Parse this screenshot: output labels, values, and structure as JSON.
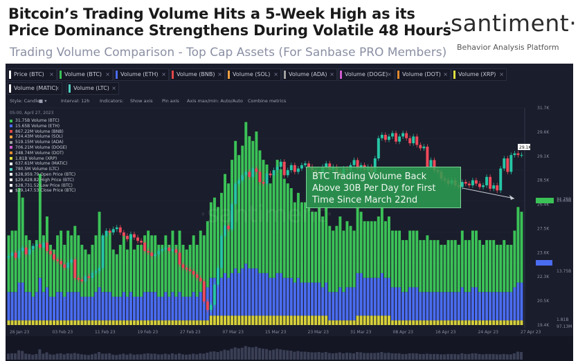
{
  "header": {
    "title": "Bitcoin’s Trading Volume Hits a 5-Week High as its Price Dominance Strengthens During Volatile 48 Hours",
    "subtitle": "Trading Volume Comparison - Top Cap Assets (For Sanbase PRO Members)",
    "brand": "·santiment·",
    "brand_tagline": "Behavior Analysis Platform"
  },
  "tabs": [
    {
      "label": "Price (BTC)",
      "color": "#ffffff"
    },
    {
      "label": "Volume (BTC)",
      "color": "#3bc257"
    },
    {
      "label": "Volume (ETH)",
      "color": "#4a6cf0"
    },
    {
      "label": "Volume (BNB)",
      "color": "#e04848"
    },
    {
      "label": "Volume (SOL)",
      "color": "#f0a040"
    },
    {
      "label": "Volume (ADA)",
      "color": "#a0a0a0"
    },
    {
      "label": "Volume (DOGE)",
      "color": "#d05bd0"
    },
    {
      "label": "Volume (DOT)",
      "color": "#e08a30"
    },
    {
      "label": "Volume (XRP)",
      "color": "#e0e040"
    },
    {
      "label": "Volume (MATIC)",
      "color": "#ffffff"
    },
    {
      "label": "Volume (LTC)",
      "color": "#50d0c0"
    }
  ],
  "toolbar": {
    "style": "Style: Candles",
    "interval": "Interval: 12h",
    "indicators": "Indicators:",
    "show_axis": "Show axis",
    "pin_axis": "Pin axis",
    "axis_max_min": "Axis max/min: Auto/Auto",
    "combine": "Combine metrics"
  },
  "legend": {
    "date": "05:00, April 27, 2023",
    "rows": [
      {
        "text": "31.75B Volume (BTC)",
        "color": "#3bc257"
      },
      {
        "text": "15.65B Volume (ETH)",
        "color": "#4a6cf0"
      },
      {
        "text": "867.22M Volume (BNB)",
        "color": "#e04848"
      },
      {
        "text": "724.43M Volume (SOL)",
        "color": "#f0a040"
      },
      {
        "text": "519.15M Volume (ADA)",
        "color": "#a0a0a0"
      },
      {
        "text": "706.21M Volume (DOGE)",
        "color": "#d05bd0"
      },
      {
        "text": "248.74M Volume (DOT)",
        "color": "#e08a30"
      },
      {
        "text": "1.81B Volume (XRP)",
        "color": "#e0e040"
      },
      {
        "text": "637.61M Volume (MATIC)",
        "color": "#ffffff"
      },
      {
        "text": "780.5M Volume (LTC)",
        "color": "#50d0c0"
      },
      {
        "text": "$28,959.79 Open Price (BTC)",
        "color": "#ffffff"
      },
      {
        "text": "$29,428.82 High Price (BTC)",
        "color": "#ffffff"
      },
      {
        "text": "$28,731.52 Low Price (BTC)",
        "color": "#ffffff"
      },
      {
        "text": "$29,147.53 Close Price (BTC)",
        "color": "#ffffff"
      }
    ]
  },
  "annotation": {
    "line1": "BTC Trading Volume Back",
    "line2": "Above 30B Per Day for First",
    "line3": "Time Since March 22nd"
  },
  "watermark": "·santiment·",
  "chart_data": {
    "type": "bar",
    "x_ticks": [
      "26 Jan 23",
      "03 Feb 23",
      "11 Feb 23",
      "19 Feb 23",
      "27 Feb 23",
      "07 Mar 23",
      "15 Mar 23",
      "23 Mar 23",
      "31 Mar 23",
      "08 Apr 23",
      "16 Apr 23",
      "24 Apr 23",
      "27 Apr 23"
    ],
    "price_axis_ticks": [
      "31.7K",
      "29.6K",
      "29.1K",
      "28.5K",
      "26.4K",
      "27.5K",
      "23.6K",
      "22.3K",
      "20.5K",
      "19.4K"
    ],
    "volume_axis_ticks": [
      "31.75B",
      "15.65B",
      "13.75B",
      "1.81B",
      "97.13M"
    ],
    "price_current_label": "29.1K",
    "series": [
      {
        "name": "Volume (BTC)",
        "color": "#3bc257",
        "values": [
          12,
          13,
          13,
          20,
          18,
          12,
          11,
          10,
          11,
          22,
          12,
          15,
          11,
          10,
          12,
          13,
          11,
          13,
          12,
          14,
          12,
          11,
          10,
          9,
          11,
          12,
          16,
          12,
          12,
          13,
          10,
          9,
          11,
          12,
          10,
          12,
          10,
          11,
          11,
          12,
          13,
          12,
          12,
          11,
          11,
          12,
          11,
          13,
          11,
          13,
          11,
          10,
          11,
          12,
          11,
          13,
          12,
          14,
          16,
          17,
          16,
          18,
          21,
          20,
          24,
          27,
          25,
          26,
          30,
          28,
          27,
          29,
          26,
          24,
          23,
          20,
          22,
          24,
          22,
          21,
          20,
          19,
          17,
          18,
          17,
          17,
          16,
          15,
          15,
          16,
          15,
          16,
          14,
          13,
          14,
          15,
          13,
          14,
          13,
          12,
          14,
          13,
          12,
          12,
          12,
          12,
          13,
          14,
          12,
          13,
          12,
          12,
          12,
          11,
          11,
          12,
          12,
          12,
          11,
          11,
          12,
          11,
          11,
          11,
          10,
          10,
          11,
          11,
          11,
          10,
          12,
          11,
          11,
          12,
          12,
          11,
          10,
          11,
          11,
          11,
          10,
          10,
          11,
          10,
          10,
          12,
          16,
          15
        ]
      },
      {
        "name": "Volume (ETH)",
        "color": "#4a6cf0",
        "values": [
          6,
          6,
          6,
          8,
          8,
          6,
          6,
          5,
          6,
          9,
          6,
          7,
          5,
          5,
          6,
          6,
          5,
          6,
          6,
          6,
          6,
          5,
          5,
          5,
          5,
          6,
          7,
          6,
          6,
          6,
          5,
          5,
          5,
          6,
          5,
          6,
          5,
          5,
          5,
          6,
          6,
          6,
          6,
          5,
          5,
          6,
          5,
          6,
          5,
          6,
          5,
          5,
          5,
          6,
          5,
          6,
          6,
          7,
          8,
          8,
          7,
          8,
          9,
          8,
          9,
          10,
          9,
          10,
          11,
          10,
          10,
          10,
          9,
          9,
          9,
          8,
          8,
          9,
          9,
          8,
          8,
          8,
          7,
          8,
          7,
          7,
          7,
          7,
          7,
          7,
          6,
          7,
          6,
          6,
          6,
          7,
          6,
          7,
          7,
          7,
          9,
          9,
          8,
          8,
          8,
          8,
          8,
          9,
          8,
          8,
          7,
          7,
          7,
          6,
          6,
          7,
          7,
          7,
          6,
          6,
          6,
          6,
          6,
          6,
          6,
          6,
          6,
          6,
          6,
          6,
          7,
          6,
          6,
          7,
          7,
          6,
          6,
          6,
          6,
          6,
          6,
          6,
          6,
          6,
          6,
          7,
          8,
          8
        ]
      },
      {
        "name": "Other",
        "color": "#d6d03a",
        "values": [
          1,
          1,
          1,
          1,
          1,
          1,
          1,
          1,
          1,
          1,
          1,
          1,
          1,
          1,
          1,
          1,
          1,
          1,
          1,
          1,
          1,
          1,
          1,
          1,
          1,
          1,
          1,
          1,
          1,
          1,
          1,
          1,
          1,
          1,
          1,
          1,
          1,
          1,
          1,
          1,
          1,
          1,
          1,
          1,
          1,
          1,
          1,
          1,
          1,
          1,
          1,
          1,
          1,
          1,
          1,
          1,
          1,
          1,
          2,
          2,
          2,
          2,
          2,
          2,
          2,
          2,
          2,
          2,
          2,
          2,
          2,
          2,
          2,
          2,
          2,
          2,
          2,
          2,
          2,
          2,
          2,
          2,
          2,
          2,
          2,
          2,
          2,
          2,
          2,
          2,
          2,
          2,
          1,
          1,
          1,
          1,
          1,
          1,
          1,
          1,
          2,
          2,
          2,
          2,
          2,
          2,
          2,
          2,
          2,
          2,
          1,
          1,
          1,
          1,
          1,
          1,
          1,
          1,
          1,
          1,
          1,
          1,
          1,
          1,
          1,
          1,
          1,
          1,
          1,
          1,
          1,
          1,
          1,
          1,
          1,
          1,
          1,
          1,
          1,
          1,
          1,
          1,
          1,
          1,
          1,
          1,
          1,
          1
        ]
      }
    ],
    "price_close": [
      23.1,
      23.3,
      23.0,
      23.4,
      23.6,
      23.2,
      23.5,
      23.7,
      23.8,
      23.6,
      23.9,
      23.4,
      23.2,
      22.9,
      22.8,
      22.6,
      22.4,
      22.7,
      22.9,
      21.8,
      21.7,
      21.6,
      21.9,
      21.8,
      22.1,
      22.2,
      22.4,
      24.3,
      24.6,
      24.5,
      24.7,
      24.8,
      24.5,
      24.3,
      24.1,
      24.4,
      24.2,
      24.0,
      23.9,
      23.4,
      23.3,
      23.1,
      23.2,
      23.4,
      23.5,
      23.6,
      23.4,
      23.5,
      23.3,
      22.6,
      22.4,
      22.3,
      22.2,
      22.0,
      21.8,
      21.6,
      20.4,
      19.9,
      20.2,
      21.4,
      22.4,
      24.3,
      24.9,
      24.7,
      26.2,
      27.4,
      27.6,
      27.9,
      28.1,
      27.8,
      28.3,
      28.1,
      27.5,
      27.4,
      28.0,
      27.9,
      28.2,
      28.4,
      28.7,
      27.9,
      28.2,
      28.5,
      28.1,
      28.3,
      28.5,
      28.6,
      28.4,
      28.2,
      28.0,
      27.9,
      28.4,
      28.6,
      28.2,
      28.4,
      28.1,
      27.9,
      28.3,
      28.2,
      28.5,
      28.8,
      28.3,
      28.5,
      28.2,
      28.4,
      28.1,
      28.9,
      30.1,
      30.3,
      30.0,
      30.2,
      30.4,
      29.9,
      30.2,
      30.4,
      30.1,
      29.8,
      30.2,
      29.7,
      29.5,
      29.6,
      28.4,
      28.8,
      28.2,
      28.1,
      27.7,
      27.6,
      27.4,
      27.6,
      27.3,
      27.2,
      27.5,
      27.4,
      27.3,
      27.6,
      27.4,
      27.2,
      27.3,
      27.8,
      27.1,
      27.3,
      27.0,
      28.3,
      28.9,
      28.1,
      29.1,
      29.2,
      29.1,
      29.1
    ]
  }
}
